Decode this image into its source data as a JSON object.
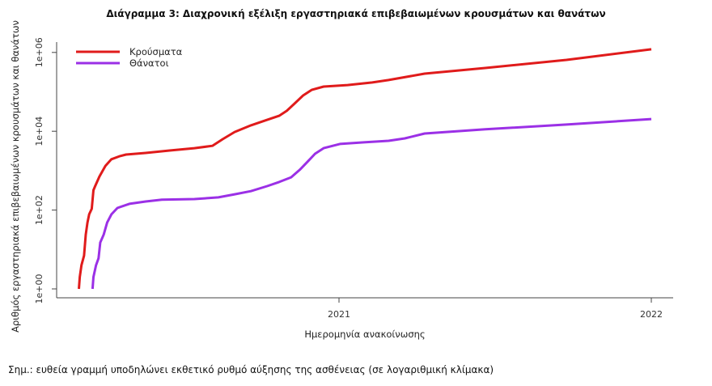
{
  "chart_data": {
    "type": "line",
    "title": "Διάγραμμα 3: Διαχρονική εξέλιξη εργαστηριακά επιβεβαιωμένων κρουσμάτων και θανάτων",
    "xlabel": "Ημερομηνία ανακοίνωσης",
    "ylabel": "Αριθμός εργαστηριακά επιβεβαιωμένων κρουσμάτων και θανάτων",
    "y_scale": "log",
    "ylim": [
      1,
      1000000
    ],
    "y_ticks": [
      "1e+00",
      "1e+02",
      "1e+04",
      "1e+06"
    ],
    "x_ticks": [
      "2021",
      "2022"
    ],
    "grid": false,
    "legend_position": "top-left",
    "series": [
      {
        "name": "Κρούσματα",
        "color": "#e01b1b",
        "points": [
          [
            "2020-03-03",
            1
          ],
          [
            "2020-03-04",
            2
          ],
          [
            "2020-03-06",
            4
          ],
          [
            "2020-03-09",
            7
          ],
          [
            "2020-03-11",
            24
          ],
          [
            "2020-03-13",
            48
          ],
          [
            "2020-03-15",
            78
          ],
          [
            "2020-03-18",
            108
          ],
          [
            "2020-03-20",
            320
          ],
          [
            "2020-03-22",
            405
          ],
          [
            "2020-03-27",
            710
          ],
          [
            "2020-04-03",
            1320
          ],
          [
            "2020-04-10",
            1950
          ],
          [
            "2020-04-20",
            2340
          ],
          [
            "2020-04-27",
            2560
          ],
          [
            "2020-05-20",
            2820
          ],
          [
            "2020-06-17",
            3240
          ],
          [
            "2020-07-16",
            3720
          ],
          [
            "2020-08-06",
            4270
          ],
          [
            "2020-08-18",
            6300
          ],
          [
            "2020-09-01",
            9600
          ],
          [
            "2020-09-20",
            14100
          ],
          [
            "2020-10-09",
            19500
          ],
          [
            "2020-10-23",
            24700
          ],
          [
            "2020-11-01",
            33000
          ],
          [
            "2020-11-11",
            52700
          ],
          [
            "2020-11-20",
            81000
          ],
          [
            "2020-11-30",
            112000
          ],
          [
            "2020-12-14",
            136000
          ],
          [
            "2021-01-11",
            149000
          ],
          [
            "2021-02-09",
            173000
          ],
          [
            "2021-02-28",
            199000
          ],
          [
            "2021-04-11",
            290000
          ],
          [
            "2021-06-21",
            404000
          ],
          [
            "2021-09-24",
            648000
          ],
          [
            "2022-01-01",
            1200000
          ]
        ]
      },
      {
        "name": "Θάνατοι",
        "color": "#9b30e6",
        "points": [
          [
            "2020-03-19",
            1
          ],
          [
            "2020-03-20",
            2
          ],
          [
            "2020-03-23",
            4
          ],
          [
            "2020-03-26",
            6
          ],
          [
            "2020-03-28",
            15
          ],
          [
            "2020-04-01",
            24
          ],
          [
            "2020-04-05",
            48
          ],
          [
            "2020-04-10",
            78
          ],
          [
            "2020-04-17",
            113
          ],
          [
            "2020-05-01",
            144
          ],
          [
            "2020-05-20",
            165
          ],
          [
            "2020-06-08",
            183
          ],
          [
            "2020-07-16",
            190
          ],
          [
            "2020-08-13",
            210
          ],
          [
            "2020-09-01",
            252
          ],
          [
            "2020-09-20",
            303
          ],
          [
            "2020-10-09",
            405
          ],
          [
            "2020-10-23",
            515
          ],
          [
            "2020-11-06",
            680
          ],
          [
            "2020-11-16",
            1050
          ],
          [
            "2020-11-25",
            1670
          ],
          [
            "2020-12-04",
            2690
          ],
          [
            "2020-12-14",
            3720
          ],
          [
            "2021-01-02",
            4770
          ],
          [
            "2021-01-30",
            5220
          ],
          [
            "2021-02-28",
            5730
          ],
          [
            "2021-03-19",
            6600
          ],
          [
            "2021-04-11",
            8740
          ],
          [
            "2021-06-21",
            11200
          ],
          [
            "2021-09-24",
            14800
          ],
          [
            "2022-01-01",
            20400
          ]
        ]
      }
    ]
  },
  "note": "Σημ.: ευθεία γραμμή υποδηλώνει εκθετικό ρυθμό αύξησης της ασθένειας (σε λογαριθμική κλίμακα)"
}
